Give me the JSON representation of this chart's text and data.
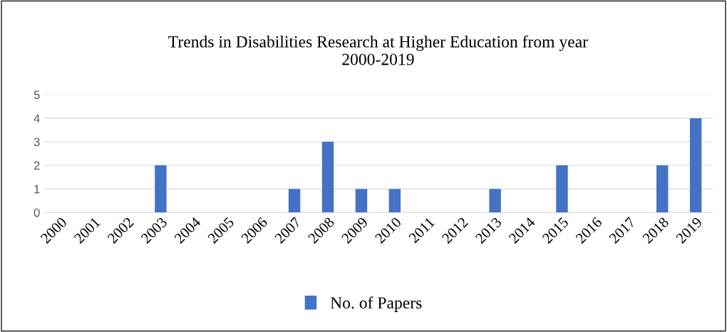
{
  "chart_data": {
    "type": "bar",
    "title": "Trends in Disabilities Research at Higher Education from year\n2000-2019",
    "categories": [
      "2000",
      "2001",
      "2002",
      "2003",
      "2004",
      "2005",
      "2006",
      "2007",
      "2008",
      "2009",
      "2010",
      "2011",
      "2012",
      "2013",
      "2014",
      "2015",
      "2016",
      "2017",
      "2018",
      "2019"
    ],
    "series": [
      {
        "name": "No. of Papers",
        "color": "#4472c4",
        "values": [
          0,
          0,
          0,
          2,
          0,
          0,
          0,
          1,
          3,
          1,
          1,
          0,
          0,
          1,
          0,
          2,
          0,
          0,
          2,
          4
        ]
      }
    ],
    "ylim": [
      0,
      5
    ],
    "yticks": [
      0,
      1,
      2,
      3,
      4,
      5
    ],
    "grid": "y",
    "legend": "bottom"
  }
}
